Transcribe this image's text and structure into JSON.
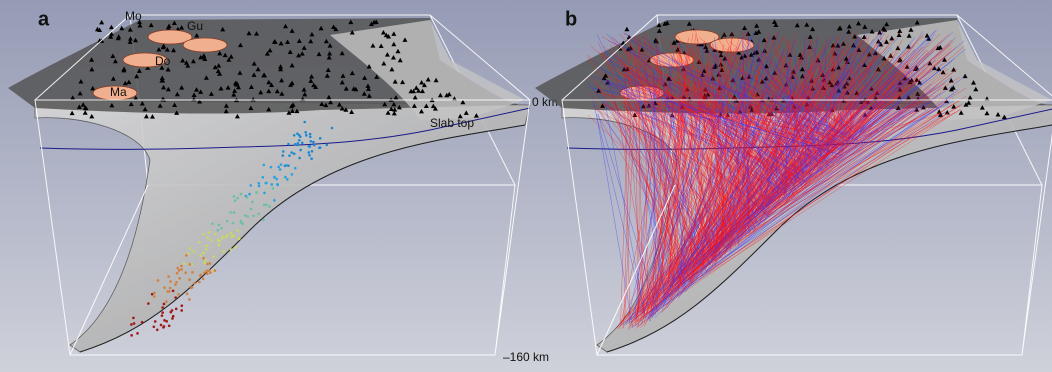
{
  "panels": [
    {
      "label": "a",
      "places": [
        "Mo",
        "Gu",
        "Do",
        "Ma"
      ],
      "depth_top": "0 km",
      "slab_label": "Slab top",
      "depth_bottom": "–160 km"
    },
    {
      "label": "b"
    }
  ]
}
